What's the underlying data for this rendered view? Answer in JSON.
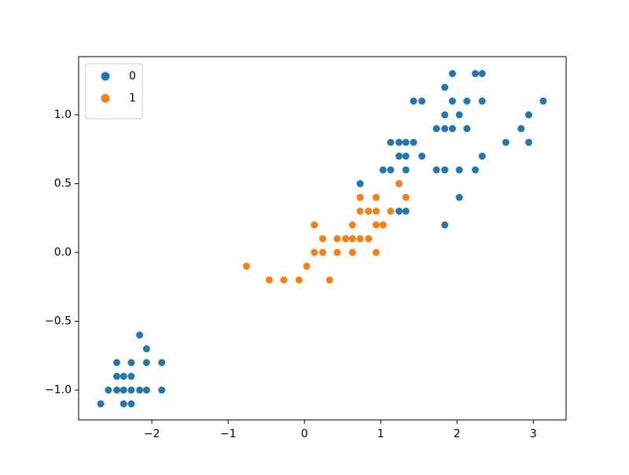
{
  "chart_data": {
    "type": "scatter",
    "xlim": [
      -2.96,
      3.43
    ],
    "ylim": [
      -1.217,
      1.423
    ],
    "xticks": [
      {
        "value": -2,
        "label": "−2"
      },
      {
        "value": -1,
        "label": "−1"
      },
      0,
      1,
      2,
      3
    ],
    "yticks": [
      {
        "value": -1.0,
        "label": "−1.0"
      },
      {
        "value": -0.5,
        "label": "−0.5"
      },
      {
        "value": 0.0,
        "label": "0.0"
      },
      {
        "value": 0.5,
        "label": "0.5"
      },
      {
        "value": 1.0,
        "label": "1.0"
      }
    ],
    "legend": "upper left",
    "series": [
      {
        "name": "0",
        "color": "#1f77b4",
        "x": [
          -2.67,
          -2.57,
          -2.46,
          -2.46,
          -2.46,
          -2.37,
          -2.37,
          -2.37,
          -2.27,
          -2.27,
          -2.27,
          -2.27,
          -2.16,
          -2.16,
          -2.07,
          -2.07,
          -2.07,
          -1.87,
          -1.87,
          0.73,
          1.03,
          1.13,
          1.13,
          1.24,
          1.24,
          1.24,
          1.33,
          1.33,
          1.33,
          1.33,
          1.43,
          1.43,
          1.54,
          1.54,
          1.73,
          1.73,
          1.84,
          1.84,
          1.84,
          1.84,
          1.84,
          1.94,
          1.94,
          1.94,
          2.03,
          2.03,
          2.03,
          2.13,
          2.13,
          2.24,
          2.24,
          2.33,
          2.33,
          2.33,
          2.64,
          2.84,
          2.94,
          2.94,
          3.13
        ],
        "values": [
          -1.1,
          -1.0,
          -0.8,
          -0.9,
          -1.0,
          -0.9,
          -1.0,
          -1.1,
          -0.8,
          -0.9,
          -1.0,
          -1.1,
          -0.6,
          -1.0,
          -0.7,
          -0.8,
          -1.0,
          -0.8,
          -1.0,
          0.5,
          0.6,
          0.6,
          0.8,
          0.8,
          0.7,
          0.3,
          0.8,
          0.7,
          0.6,
          0.3,
          0.8,
          1.1,
          1.1,
          0.7,
          0.9,
          0.6,
          1.2,
          1.0,
          0.9,
          0.6,
          0.2,
          1.3,
          1.1,
          0.9,
          1.0,
          0.6,
          0.4,
          1.1,
          0.9,
          1.3,
          0.6,
          1.3,
          1.1,
          0.7,
          0.8,
          0.9,
          1.0,
          0.8,
          1.1
        ]
      },
      {
        "name": "1",
        "color": "#ff7f0e",
        "x": [
          -0.76,
          -0.46,
          -0.27,
          -0.07,
          0.03,
          0.13,
          0.13,
          0.24,
          0.24,
          0.33,
          0.43,
          0.43,
          0.54,
          0.63,
          0.63,
          0.63,
          0.73,
          0.73,
          0.73,
          0.84,
          0.84,
          0.94,
          0.94,
          0.94,
          0.94,
          1.03,
          1.13,
          1.24,
          1.33
        ],
        "values": [
          -0.1,
          -0.2,
          -0.2,
          -0.2,
          -0.1,
          0.2,
          0.0,
          0.1,
          0.0,
          -0.2,
          0.1,
          0.0,
          0.1,
          0.2,
          0.1,
          0.0,
          0.4,
          0.3,
          0.1,
          0.3,
          0.1,
          0.4,
          0.3,
          0.2,
          0.0,
          0.2,
          0.3,
          0.5,
          0.4
        ]
      }
    ]
  }
}
